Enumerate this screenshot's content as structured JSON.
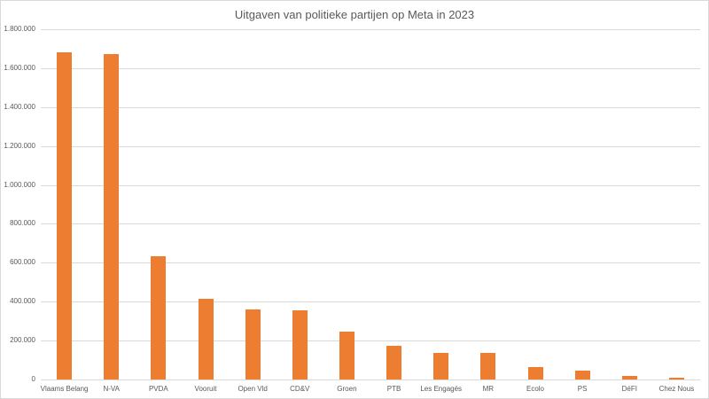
{
  "chart_data": {
    "type": "bar",
    "title": "Uitgaven van politieke partijen op Meta in 2023",
    "xlabel": "",
    "ylabel": "",
    "ylim": [
      0,
      1800000
    ],
    "yticks": [
      0,
      200000,
      400000,
      600000,
      800000,
      1000000,
      1200000,
      1400000,
      1600000,
      1800000
    ],
    "ytick_labels": [
      "0",
      "200.000",
      "400.000",
      "600.000",
      "800.000",
      "1.000.000",
      "1.200.000",
      "1.400.000",
      "1.600.000",
      "1.800.000"
    ],
    "grid": true,
    "legend": "none",
    "bar_color": "#ed7d31",
    "categories": [
      "Vlaams Belang",
      "N-VA",
      "PVDA",
      "Vooruit",
      "Open Vld",
      "CD&V",
      "Groen",
      "PTB",
      "Les Engagés",
      "MR",
      "Ecolo",
      "PS",
      "DéFI",
      "Chez Nous"
    ],
    "values": [
      1682000,
      1673000,
      632000,
      414000,
      359000,
      355000,
      245000,
      173000,
      136000,
      136000,
      64000,
      45000,
      18000,
      7000
    ]
  }
}
